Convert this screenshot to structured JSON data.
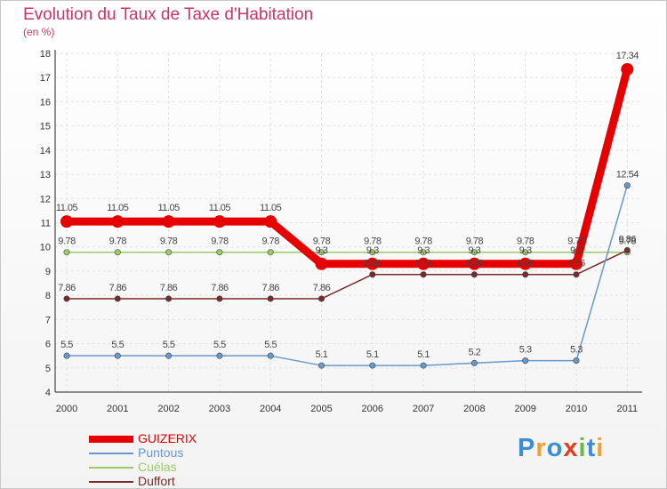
{
  "header": {
    "title": "Evolution du Taux de Taxe d'Habitation",
    "subtitle": "(en %)"
  },
  "chart_data": {
    "type": "line",
    "title": "Evolution du Taux de Taxe d'Habitation",
    "ylabel": "(en %)",
    "xlabel": "",
    "ylim": [
      4,
      18
    ],
    "yticks": [
      4,
      5,
      6,
      7,
      8,
      9,
      10,
      11,
      12,
      13,
      14,
      15,
      16,
      17,
      18
    ],
    "categories": [
      "2000",
      "2001",
      "2002",
      "2003",
      "2004",
      "2005",
      "2006",
      "2007",
      "2008",
      "2009",
      "2010",
      "2011"
    ],
    "grid": true,
    "series": [
      {
        "name": "GUIZERIX",
        "color": "#e60000",
        "values": [
          11.05,
          11.05,
          11.05,
          11.05,
          11.05,
          9.3,
          9.3,
          9.3,
          9.3,
          9.3,
          9.3,
          17.34
        ],
        "labels": [
          "11.05",
          "11.05",
          "11.05",
          "11.05",
          "11.05",
          "9.3",
          "9.3",
          "9.3",
          "9.3",
          "9.3",
          "9.3",
          "17.34"
        ]
      },
      {
        "name": "Puntous",
        "color": "#6699cc",
        "values": [
          5.5,
          5.5,
          5.5,
          5.5,
          5.5,
          5.1,
          5.1,
          5.1,
          5.2,
          5.3,
          5.3,
          12.54
        ],
        "labels": [
          "5.5",
          "5.5",
          "5.5",
          "5.5",
          "5.5",
          "5.1",
          "5.1",
          "5.1",
          "5.2",
          "5.3",
          "5.3",
          "12.54"
        ]
      },
      {
        "name": "Cuélas",
        "color": "#99cc66",
        "values": [
          9.78,
          9.78,
          9.78,
          9.78,
          9.78,
          9.78,
          9.78,
          9.78,
          9.78,
          9.78,
          9.78,
          9.78
        ],
        "labels": [
          "9.78",
          "9.78",
          "9.78",
          "9.78",
          "9.78",
          "9.78",
          "9.78",
          "9.78",
          "9.78",
          "9.78",
          "9.78",
          "9.78"
        ]
      },
      {
        "name": "Duffort",
        "color": "#7a2a2a",
        "values": [
          7.86,
          7.86,
          7.86,
          7.86,
          7.86,
          7.86,
          8.86,
          8.86,
          8.86,
          8.86,
          8.86,
          9.86
        ],
        "labels": [
          "7.86",
          "7.86",
          "7.86",
          "7.86",
          "7.86",
          "7.86",
          "8.86",
          "8.86",
          "8.86",
          "8.86",
          "8.86",
          "9.86"
        ]
      }
    ]
  },
  "legend": {
    "items": [
      {
        "label": "GUIZERIX",
        "color": "#e60000"
      },
      {
        "label": "Puntous",
        "color": "#6699cc"
      },
      {
        "label": "Cuélas",
        "color": "#99cc66"
      },
      {
        "label": "Duffort",
        "color": "#7a2a2a"
      }
    ]
  },
  "branding": {
    "logo_text": "Proxiti",
    "logo_colors": [
      "#3b8ed6",
      "#f0a030",
      "#3b8ed6",
      "#e04020",
      "#66bb44",
      "#3b8ed6",
      "#f0a030"
    ]
  }
}
